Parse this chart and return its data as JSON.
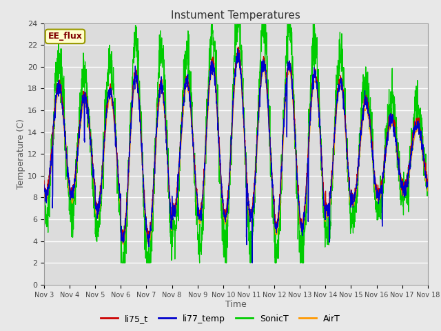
{
  "title": "Instument Temperatures",
  "xlabel": "Time",
  "ylabel": "Temperature (C)",
  "ylim": [
    0,
    24
  ],
  "annotation": "EE_flux",
  "fig_bg_color": "#e8e8e8",
  "plot_bg_color": "#dcdcdc",
  "legend_entries": [
    "li75_t",
    "li77_temp",
    "SonicT",
    "AirT"
  ],
  "line_colors": [
    "#cc0000",
    "#0000cc",
    "#00cc00",
    "#ff9900"
  ],
  "xtick_labels": [
    "Nov 3",
    "Nov 4",
    "Nov 5",
    "Nov 6",
    "Nov 7",
    "Nov 8",
    "Nov 9",
    "Nov 10",
    "Nov 11",
    "Nov 12",
    "Nov 13",
    "Nov 14",
    "Nov 15",
    "Nov 16",
    "Nov 17",
    "Nov 18"
  ],
  "ytick_labels": [
    "0",
    "2",
    "4",
    "6",
    "8",
    "10",
    "12",
    "14",
    "16",
    "18",
    "20",
    "22",
    "24"
  ],
  "n_days": 15,
  "pts_per_day": 144,
  "seed": 7
}
